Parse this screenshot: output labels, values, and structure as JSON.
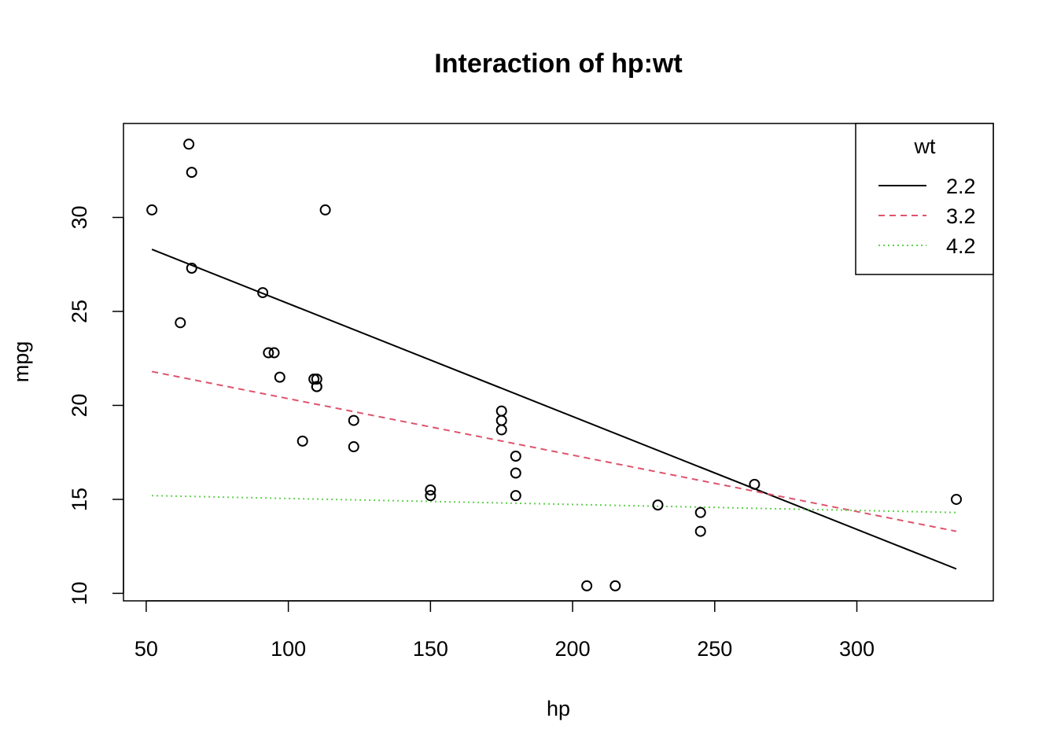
{
  "chart_data": {
    "type": "scatter",
    "title": "Interaction of hp:wt",
    "xlabel": "hp",
    "ylabel": "mpg",
    "xlim": [
      42,
      348
    ],
    "ylim": [
      9.6,
      35.0
    ],
    "xticks": [
      50,
      100,
      150,
      200,
      250,
      300
    ],
    "yticks": [
      10,
      15,
      20,
      25,
      30
    ],
    "xtick_labels": [
      "50",
      "100",
      "150",
      "200",
      "250",
      "300"
    ],
    "ytick_labels": [
      "10",
      "15",
      "20",
      "25",
      "30"
    ],
    "grid": false,
    "points": [
      {
        "x": 110,
        "y": 21.0
      },
      {
        "x": 110,
        "y": 21.0
      },
      {
        "x": 93,
        "y": 22.8
      },
      {
        "x": 110,
        "y": 21.4
      },
      {
        "x": 175,
        "y": 18.7
      },
      {
        "x": 105,
        "y": 18.1
      },
      {
        "x": 245,
        "y": 14.3
      },
      {
        "x": 62,
        "y": 24.4
      },
      {
        "x": 95,
        "y": 22.8
      },
      {
        "x": 123,
        "y": 19.2
      },
      {
        "x": 123,
        "y": 17.8
      },
      {
        "x": 180,
        "y": 16.4
      },
      {
        "x": 180,
        "y": 17.3
      },
      {
        "x": 180,
        "y": 15.2
      },
      {
        "x": 205,
        "y": 10.4
      },
      {
        "x": 215,
        "y": 10.4
      },
      {
        "x": 230,
        "y": 14.7
      },
      {
        "x": 66,
        "y": 32.4
      },
      {
        "x": 52,
        "y": 30.4
      },
      {
        "x": 65,
        "y": 33.9
      },
      {
        "x": 97,
        "y": 21.5
      },
      {
        "x": 150,
        "y": 15.5
      },
      {
        "x": 150,
        "y": 15.2
      },
      {
        "x": 245,
        "y": 13.3
      },
      {
        "x": 175,
        "y": 19.2
      },
      {
        "x": 66,
        "y": 27.3
      },
      {
        "x": 91,
        "y": 26.0
      },
      {
        "x": 113,
        "y": 30.4
      },
      {
        "x": 264,
        "y": 15.8
      },
      {
        "x": 175,
        "y": 19.7
      },
      {
        "x": 335,
        "y": 15.0
      },
      {
        "x": 109,
        "y": 21.4
      }
    ],
    "series": [
      {
        "name": "2.2",
        "color": "#000000",
        "dash": "solid",
        "x": [
          52,
          335
        ],
        "y": [
          28.3,
          11.3
        ]
      },
      {
        "name": "3.2",
        "color": "#DF536B",
        "dash": "dashed",
        "x": [
          52,
          335
        ],
        "y": [
          21.8,
          13.3
        ]
      },
      {
        "name": "4.2",
        "color": "#61D04F",
        "dash": "dotted",
        "x": [
          52,
          335
        ],
        "y": [
          15.2,
          14.3
        ]
      }
    ],
    "legend": {
      "title": "wt",
      "position": "top-right",
      "entries": [
        "2.2",
        "3.2",
        "4.2"
      ]
    }
  }
}
